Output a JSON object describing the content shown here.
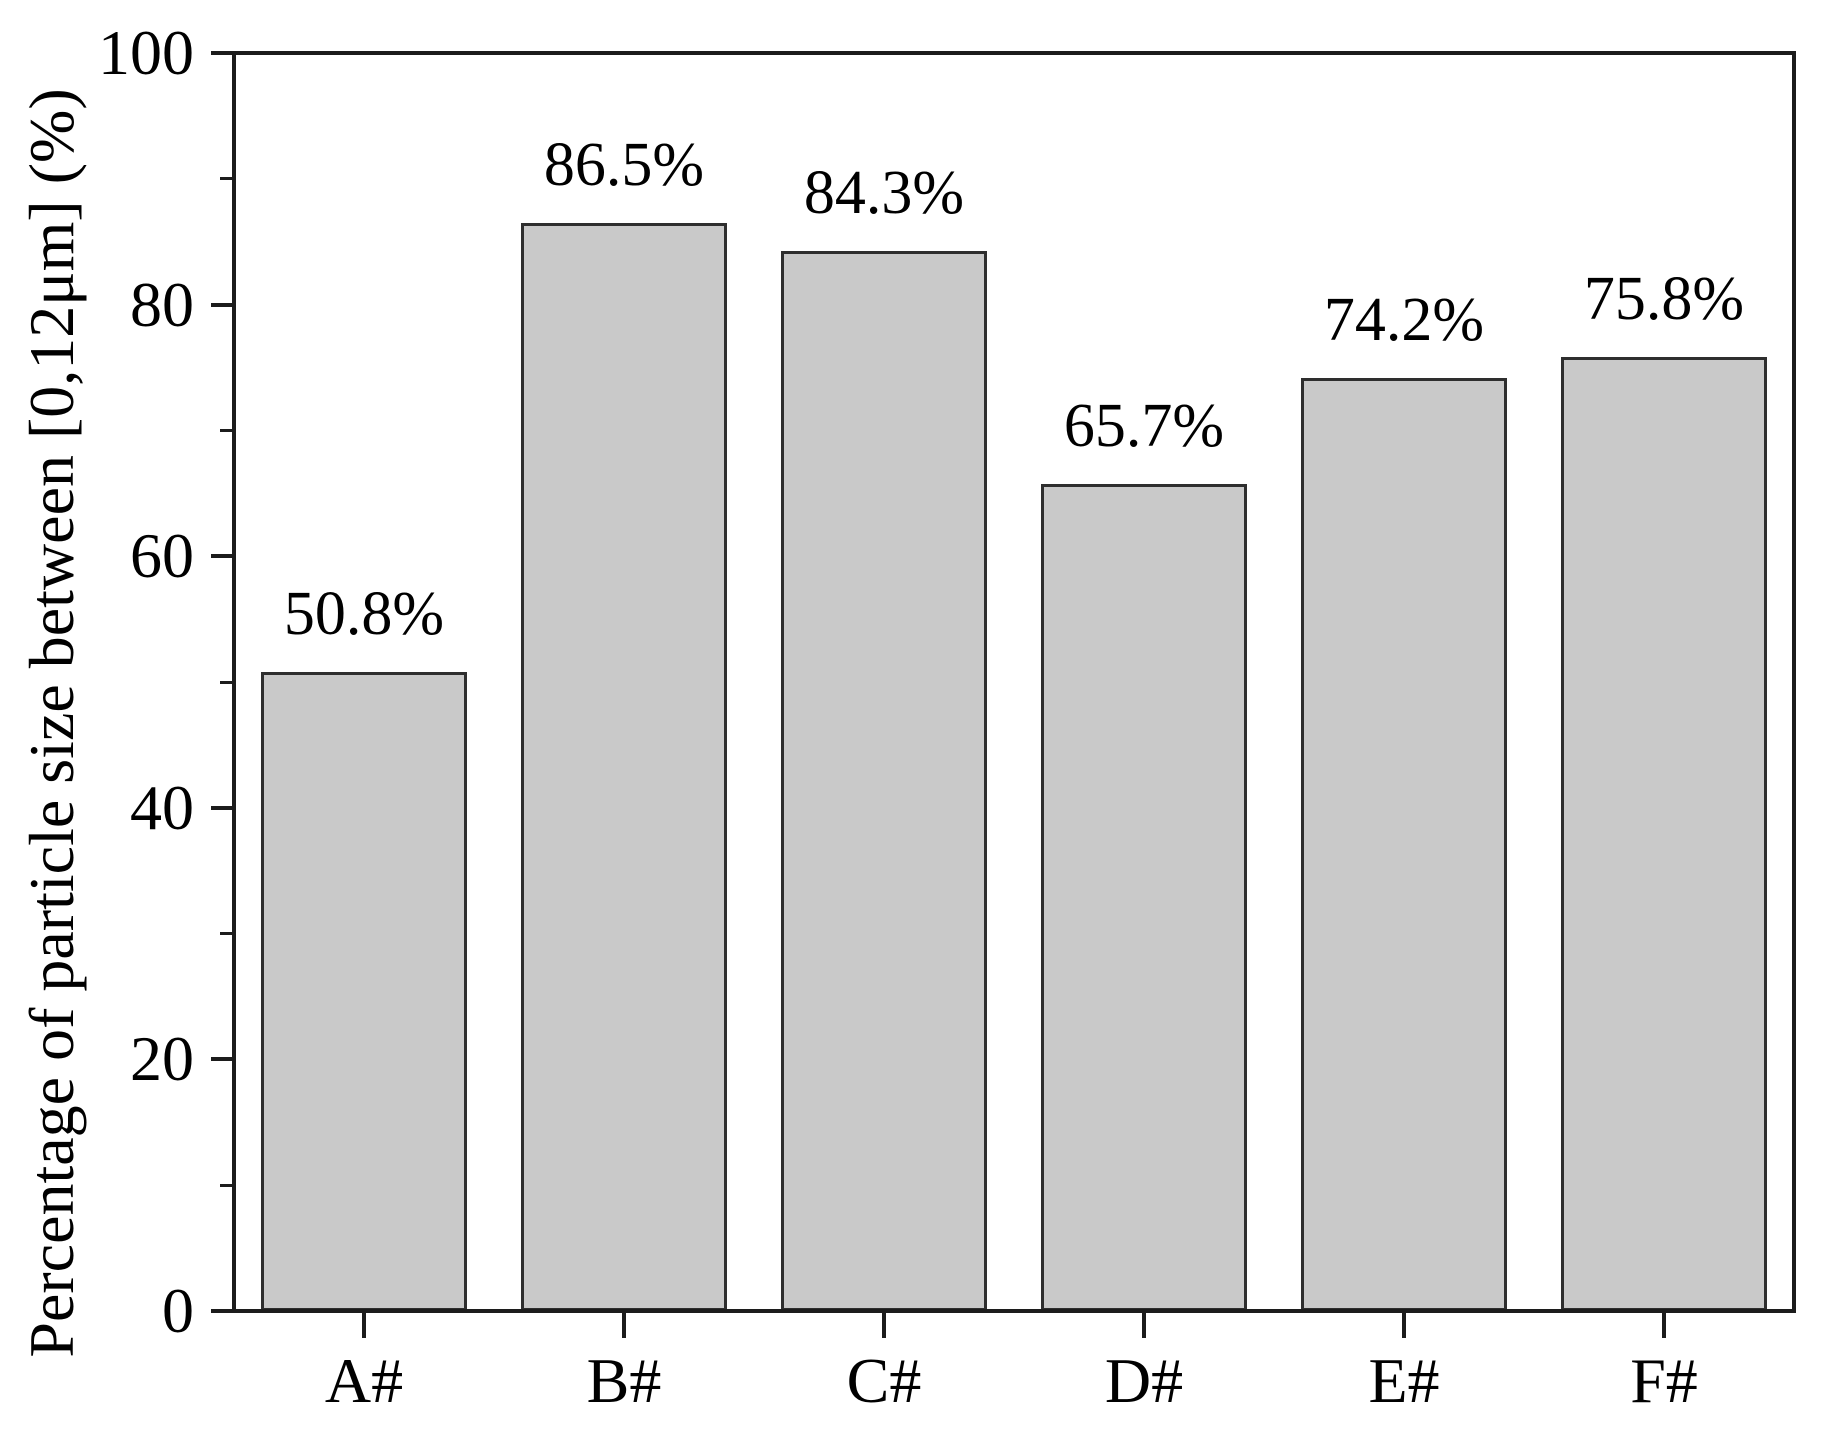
{
  "figure": {
    "background": "#ffffff",
    "axis_color": "#1c1c1c",
    "text_color": "#000000",
    "bar_fill": "#c9c9c9",
    "bar_border": "#2e2e2e"
  },
  "chart_data": {
    "type": "bar",
    "title": "",
    "xlabel": "",
    "ylabel": "Percentage of particle size between [0,12μm] (%)",
    "categories": [
      "A#",
      "B#",
      "C#",
      "D#",
      "E#",
      "F#"
    ],
    "values": [
      50.8,
      86.5,
      84.3,
      65.7,
      74.2,
      75.8
    ],
    "bar_labels": [
      "50.8%",
      "86.5%",
      "84.3%",
      "65.7%",
      "74.2%",
      "75.8%"
    ],
    "ylim": [
      0,
      100
    ],
    "ytick_major": [
      0,
      20,
      40,
      60,
      80,
      100
    ],
    "ytick_minor": [
      10,
      30,
      50,
      70,
      90
    ],
    "grid": false,
    "legend": "none"
  }
}
